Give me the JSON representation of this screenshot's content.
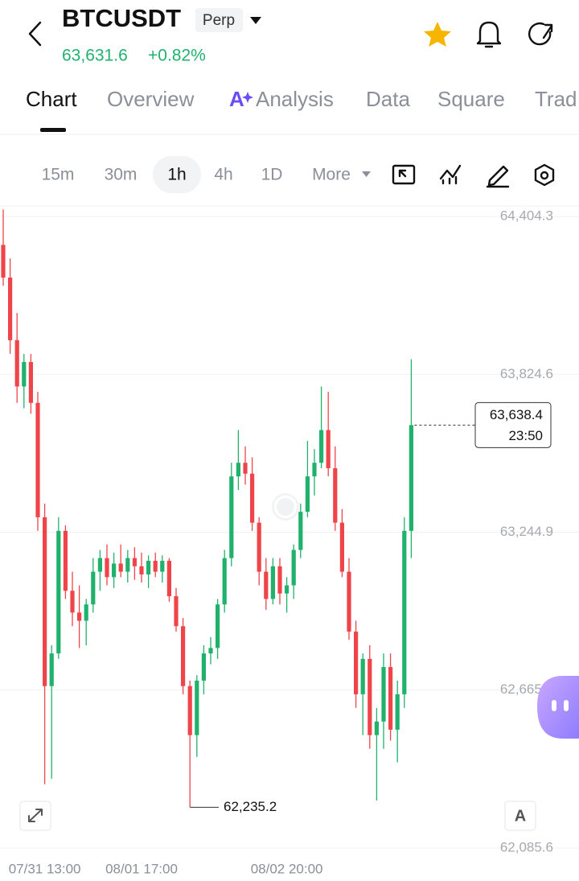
{
  "header": {
    "symbol": "BTCUSDT",
    "contract": "Perp",
    "price": "63,631.6",
    "change": "+0.82%"
  },
  "tabs": [
    "Chart",
    "Overview",
    "Analysis",
    "Data",
    "Square",
    "Trad"
  ],
  "intervals": [
    "15m",
    "30m",
    "1h",
    "4h",
    "1D",
    "More"
  ],
  "font_button": "A",
  "chart_data": {
    "type": "candlestick",
    "up_color": "#20b26c",
    "down_color": "#ef454a",
    "grid": true,
    "ylim": [
      62053,
      64437
    ],
    "yticks": [
      {
        "value": 64404.3,
        "label": "64,404.3"
      },
      {
        "value": 63824.6,
        "label": "63,824.6"
      },
      {
        "value": 63244.9,
        "label": "63,244.9"
      },
      {
        "value": 62665.3,
        "label": "62,665.3"
      },
      {
        "value": 62085.6,
        "label": "62,085.6"
      }
    ],
    "categories": [
      null,
      null,
      null,
      null,
      null,
      null,
      "07/31 13:00",
      null,
      null,
      null,
      null,
      null,
      null,
      null,
      null,
      null,
      null,
      null,
      null,
      null,
      "08/01 17:00",
      null,
      null,
      null,
      null,
      null,
      null,
      null,
      null,
      null,
      null,
      null,
      null,
      null,
      null,
      null,
      null,
      null,
      null,
      null,
      null,
      "08/02 20:00",
      null,
      null,
      null,
      null,
      null,
      null,
      null,
      null,
      null,
      null,
      null,
      null,
      null,
      null,
      null,
      null,
      null,
      null
    ],
    "open": [
      64300,
      64180,
      63950,
      63780,
      63870,
      63720,
      63300,
      62680,
      62800,
      63250,
      63030,
      62950,
      62920,
      62980,
      63100,
      63150,
      63080,
      63130,
      63100,
      63150,
      63120,
      63090,
      63140,
      63100,
      63140,
      63010,
      62900,
      62680,
      62500,
      62700,
      62800,
      62820,
      62980,
      63150,
      63450,
      63500,
      63460,
      63280,
      63100,
      63000,
      63120,
      63020,
      63050,
      63180,
      63320,
      63450,
      63500,
      63620,
      63480,
      63280,
      63100,
      62880,
      62650,
      62780,
      62500,
      62550,
      62750,
      62520,
      62650,
      63250
    ],
    "high": [
      64430,
      64250,
      64050,
      63900,
      63900,
      63760,
      63350,
      62830,
      63300,
      63270,
      63100,
      63050,
      63000,
      63150,
      63180,
      63200,
      63170,
      63200,
      63180,
      63190,
      63170,
      63160,
      63170,
      63160,
      63150,
      63040,
      62930,
      62700,
      62720,
      62830,
      62860,
      63000,
      63180,
      63500,
      63620,
      63560,
      63520,
      63300,
      63150,
      63150,
      63150,
      63080,
      63200,
      63350,
      63580,
      63550,
      63780,
      63760,
      63560,
      63330,
      63150,
      62920,
      62800,
      62830,
      62600,
      62800,
      62800,
      62700,
      63300,
      63880
    ],
    "low": [
      64150,
      63900,
      63720,
      63700,
      63680,
      63250,
      62320,
      62340,
      62780,
      63000,
      62900,
      62820,
      62830,
      62950,
      63030,
      63050,
      63040,
      63080,
      63060,
      63070,
      63060,
      63040,
      63080,
      63060,
      62990,
      62880,
      62650,
      62235.2,
      62420,
      62650,
      62760,
      62780,
      62950,
      63120,
      63400,
      63420,
      63250,
      63050,
      62960,
      62980,
      62980,
      62950,
      63000,
      63150,
      63300,
      63380,
      63480,
      63450,
      63250,
      63080,
      62850,
      62600,
      62500,
      62450,
      62260,
      62450,
      62480,
      62400,
      62600,
      63150
    ],
    "close": [
      64180,
      63950,
      63780,
      63870,
      63720,
      63300,
      62680,
      62800,
      63250,
      63030,
      62950,
      62920,
      62980,
      63100,
      63150,
      63080,
      63130,
      63100,
      63150,
      63120,
      63090,
      63140,
      63100,
      63140,
      63010,
      62900,
      62680,
      62500,
      62700,
      62800,
      62820,
      62980,
      63150,
      63450,
      63500,
      63460,
      63280,
      63100,
      63000,
      63120,
      63020,
      63050,
      63180,
      63320,
      63450,
      63500,
      63620,
      63480,
      63280,
      63100,
      62880,
      62650,
      62780,
      62500,
      62550,
      62750,
      62520,
      62650,
      63250,
      63638.4
    ],
    "last_price": {
      "value": 63638.4,
      "label": "63,638.4"
    },
    "countdown": "23:50",
    "low_marker": {
      "value": 62235.2,
      "label": "62,235.2"
    }
  }
}
